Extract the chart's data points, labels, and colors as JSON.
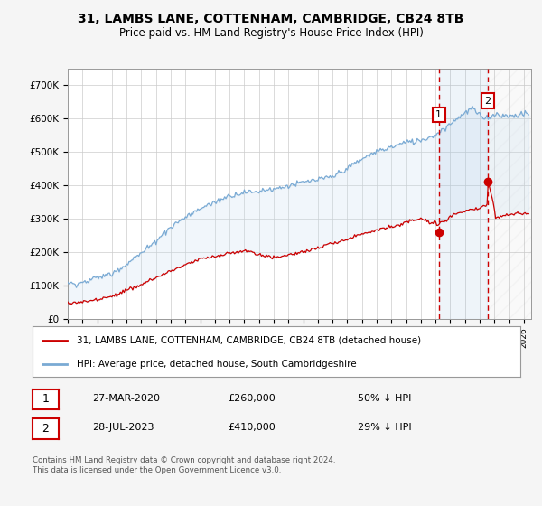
{
  "title1": "31, LAMBS LANE, COTTENHAM, CAMBRIDGE, CB24 8TB",
  "title2": "Price paid vs. HM Land Registry's House Price Index (HPI)",
  "ylabel_ticks": [
    "£0",
    "£100K",
    "£200K",
    "£300K",
    "£400K",
    "£500K",
    "£600K",
    "£700K"
  ],
  "ytick_values": [
    0,
    100000,
    200000,
    300000,
    400000,
    500000,
    600000,
    700000
  ],
  "ylim": [
    0,
    750000
  ],
  "xlim_start": 1995.0,
  "xlim_end": 2026.5,
  "hpi_color": "#7aaad4",
  "hpi_fill_color": "#c8dff0",
  "price_color": "#cc0000",
  "dashed_color": "#cc0000",
  "marker1_date_val": 2020.22,
  "marker1_price": 260000,
  "marker2_date_val": 2023.56,
  "marker2_price": 410000,
  "legend_label1": "31, LAMBS LANE, COTTENHAM, CAMBRIDGE, CB24 8TB (detached house)",
  "legend_label2": "HPI: Average price, detached house, South Cambridgeshire",
  "note1_num": "1",
  "note1_date": "27-MAR-2020",
  "note1_price": "£260,000",
  "note1_hpi": "50% ↓ HPI",
  "note2_num": "2",
  "note2_date": "28-JUL-2023",
  "note2_price": "£410,000",
  "note2_hpi": "29% ↓ HPI",
  "footer": "Contains HM Land Registry data © Crown copyright and database right 2024.\nThis data is licensed under the Open Government Licence v3.0.",
  "bg_color": "#f5f5f5",
  "plot_bg_color": "#ffffff",
  "grid_color": "#cccccc"
}
